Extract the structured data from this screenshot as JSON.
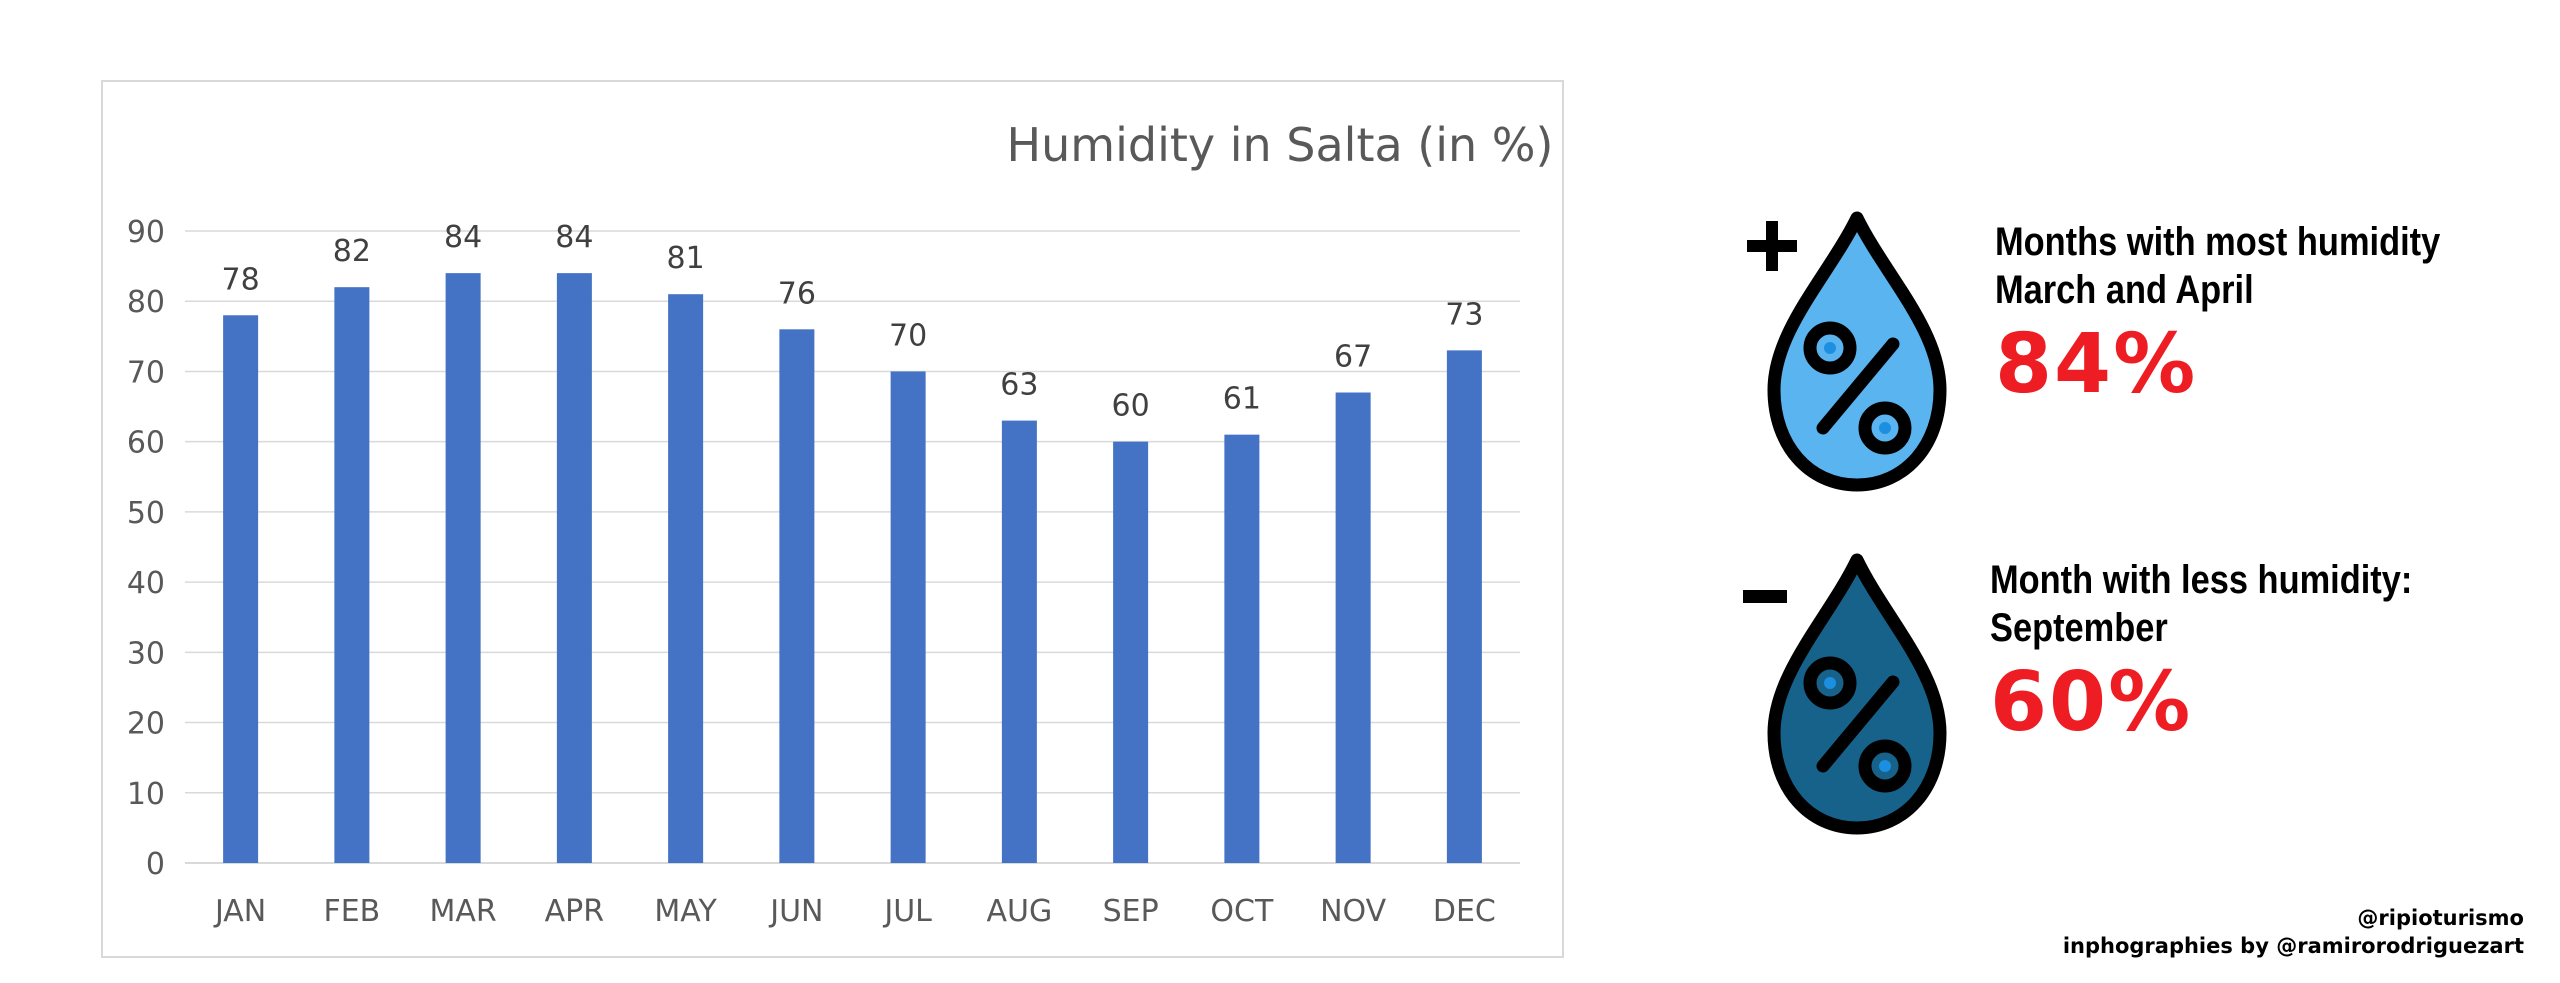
{
  "chart_data": {
    "type": "bar",
    "title": "Humidity in Salta (in %)",
    "categories": [
      "JAN",
      "FEB",
      "MAR",
      "APR",
      "MAY",
      "JUN",
      "JUL",
      "AUG",
      "SEP",
      "OCT",
      "NOV",
      "DEC"
    ],
    "values": [
      78,
      82,
      84,
      84,
      81,
      76,
      70,
      63,
      60,
      61,
      67,
      73
    ],
    "ylim": [
      0,
      90
    ],
    "yticks": [
      0,
      10,
      20,
      30,
      40,
      50,
      60,
      70,
      80,
      90
    ],
    "xlabel": "",
    "ylabel": "",
    "grid": true,
    "legend": "none",
    "data_labels": true,
    "bar_color": "#4472c4"
  },
  "highlights": {
    "most": {
      "sign": "+",
      "line1": "Months with most humidity",
      "line2": "March and April",
      "value": "84%",
      "drop_color": "#5ab4f0"
    },
    "least": {
      "sign": "-",
      "line1": "Month with less humidity:",
      "line2": "September",
      "value": "60%",
      "drop_color": "#16628a"
    }
  },
  "credits": {
    "line1": "@ripioturismo",
    "line2": "inphographies by @ramirorodriguezart"
  },
  "colors": {
    "value_red": "#ee1d23",
    "grid": "#d9d9d9",
    "axis_text": "#595959"
  }
}
